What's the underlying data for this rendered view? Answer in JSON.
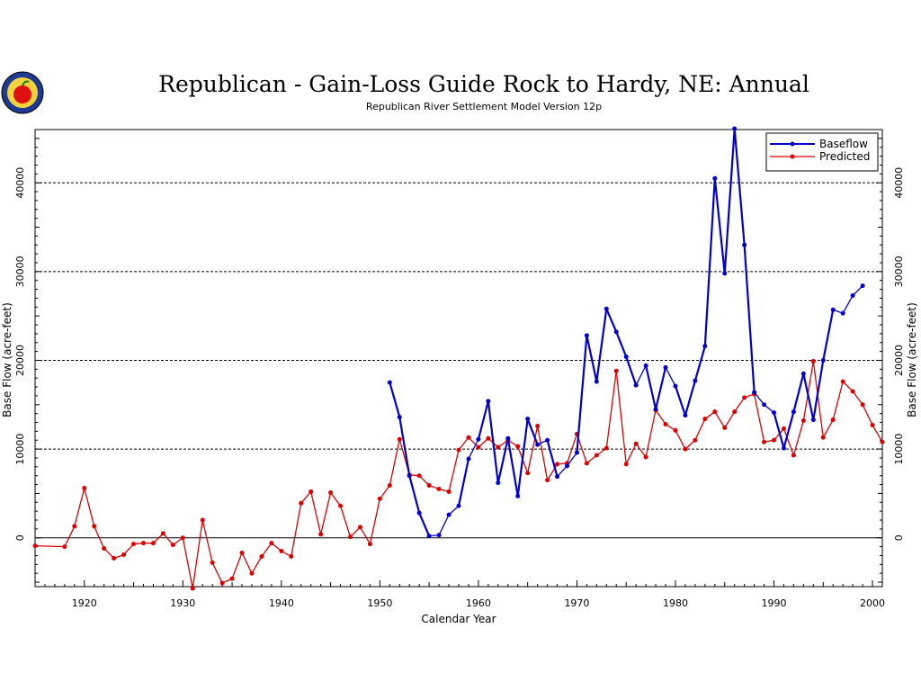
{
  "chart_data": {
    "type": "line",
    "title": "Republican - Gain-Loss Guide Rock to Hardy, NE: Annual",
    "subtitle": "Republican River Settlement Model Version 12p",
    "xlabel": "Calendar Year",
    "ylabel": "Base Flow (acre-feet)",
    "ylabel_right": "Base Flow (acre-feet)",
    "xlim": [
      1915,
      2001
    ],
    "ylim": [
      -5500,
      46000
    ],
    "x_ticks": [
      1920,
      1930,
      1940,
      1950,
      1960,
      1970,
      1980,
      1990,
      2000
    ],
    "y_ticks": [
      0,
      10000,
      20000,
      30000,
      40000
    ],
    "gridlines_y": [
      0,
      10000,
      20000,
      30000,
      40000
    ],
    "legend_position": "top-right",
    "series": [
      {
        "name": "Baseflow",
        "color": "#0000cc",
        "x": [
          1951,
          1952,
          1953,
          1954,
          1955,
          1956,
          1957,
          1958,
          1959,
          1960,
          1961,
          1962,
          1963,
          1964,
          1965,
          1966,
          1967,
          1968,
          1969,
          1970,
          1971,
          1972,
          1973,
          1974,
          1975,
          1976,
          1977,
          1978,
          1979,
          1980,
          1981,
          1982,
          1983,
          1984,
          1985,
          1986,
          1987,
          1988,
          1989,
          1990,
          1991,
          1992,
          1993,
          1994,
          1995,
          1996,
          1997,
          1998,
          1999
        ],
        "y": [
          17500,
          13600,
          7000,
          2800,
          200,
          300,
          2600,
          3600,
          8900,
          11100,
          15400,
          6200,
          11200,
          4700,
          13400,
          10500,
          11000,
          6900,
          8100,
          9600,
          22800,
          17600,
          25800,
          23200,
          20400,
          17200,
          19400,
          14500,
          19200,
          17100,
          13800,
          17700,
          21600,
          40500,
          29800,
          46100,
          33000,
          16400,
          15000,
          14100,
          10100,
          14200,
          18500,
          13300,
          20000,
          25700,
          25300,
          27300,
          28400
        ]
      },
      {
        "name": "Predicted",
        "color": "#dd0000",
        "x": [
          1915,
          1918,
          1919,
          1920,
          1921,
          1922,
          1923,
          1924,
          1925,
          1926,
          1927,
          1928,
          1929,
          1930,
          1931,
          1932,
          1933,
          1934,
          1935,
          1936,
          1937,
          1938,
          1939,
          1940,
          1941,
          1942,
          1943,
          1944,
          1945,
          1946,
          1947,
          1948,
          1949,
          1950,
          1951,
          1952,
          1953,
          1954,
          1955,
          1956,
          1957,
          1958,
          1959,
          1960,
          1961,
          1962,
          1963,
          1964,
          1965,
          1966,
          1967,
          1968,
          1969,
          1970,
          1971,
          1972,
          1973,
          1974,
          1975,
          1976,
          1977,
          1978,
          1979,
          1980,
          1981,
          1982,
          1983,
          1984,
          1985,
          1986,
          1987,
          1988,
          1989,
          1990,
          1991,
          1992,
          1993,
          1994,
          1995,
          1996,
          1997,
          1998,
          1999,
          2000,
          2001
        ],
        "y": [
          -900,
          -1000,
          1300,
          5600,
          1300,
          -1200,
          -2300,
          -1900,
          -700,
          -600,
          -600,
          500,
          -800,
          0,
          -5700,
          2000,
          -2800,
          -5100,
          -4600,
          -1700,
          -4000,
          -2100,
          -600,
          -1500,
          -2100,
          3900,
          5200,
          400,
          5100,
          3600,
          100,
          1200,
          -700,
          4400,
          5900,
          11100,
          7100,
          7000,
          5900,
          5500,
          5200,
          9900,
          11300,
          10200,
          11200,
          10200,
          11000,
          10300,
          7300,
          12600,
          6500,
          8300,
          8400,
          11700,
          8400,
          9300,
          10100,
          18800,
          8300,
          10600,
          9100,
          14400,
          12800,
          12100,
          10000,
          11000,
          13400,
          14200,
          12400,
          14200,
          15800,
          16200,
          10800,
          11000,
          12300,
          9300,
          13200,
          19900,
          11300,
          13300,
          17600,
          16500,
          15000,
          12700,
          10800
        ]
      }
    ]
  }
}
